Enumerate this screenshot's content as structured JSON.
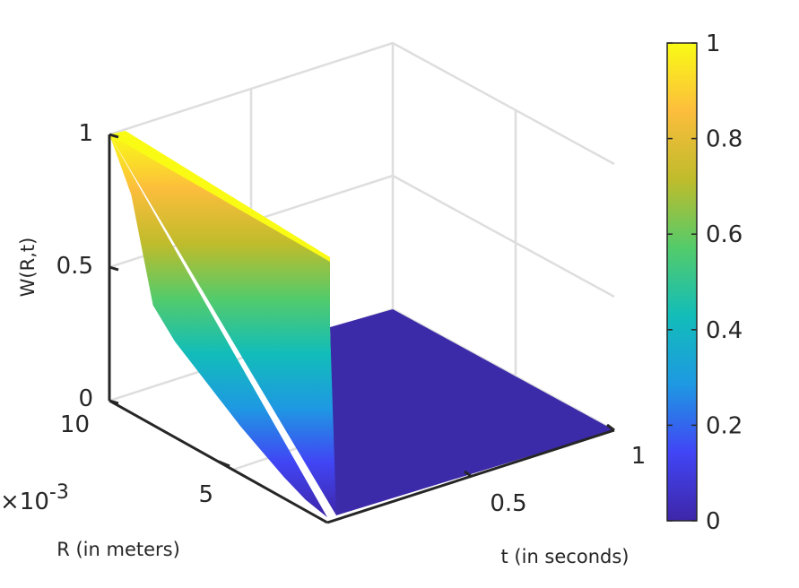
{
  "chart_data": {
    "type": "surface",
    "xlabel": "t (in seconds)",
    "ylabel": "R (in meters)",
    "zlabel": "W(R,t)",
    "t_ticks": [
      "0.5",
      "1"
    ],
    "r_ticks": [
      "5",
      "10"
    ],
    "r_exponent": "×10",
    "r_exponent_power": "-3",
    "z_ticks": [
      "0",
      "0.5",
      "1"
    ],
    "t_range": [
      0,
      1
    ],
    "r_range": [
      0,
      0.01
    ],
    "z_range": [
      0,
      1
    ],
    "grid": true,
    "colormap": "parula",
    "colorbar": {
      "ticks": [
        "0",
        "0.2",
        "0.4",
        "0.6",
        "0.8",
        "1"
      ],
      "range": [
        0,
        1
      ],
      "colors": [
        "#3e26a8",
        "#4145f5",
        "#1e99e2",
        "#12bdb9",
        "#53cb6b",
        "#bfbc2b",
        "#fcbd3c",
        "#f9fb15"
      ]
    },
    "surface": {
      "description_values": {
        "t_at_r_max": [
          0,
          0.0,
          0.0
        ],
        "W_at_t0_across_R": [
          [
            0.01,
            1.0
          ],
          [
            0.009,
            0.82
          ],
          [
            0.008,
            0.45
          ],
          [
            0.007,
            0.36
          ],
          [
            0.006,
            0.3
          ],
          [
            0.005,
            0.24
          ],
          [
            0.004,
            0.18
          ],
          [
            0.003,
            0.13
          ],
          [
            0.002,
            0.08
          ],
          [
            0.001,
            0.04
          ],
          [
            0.0,
            0.02
          ]
        ],
        "W_for_t_gt_0": 0
      }
    }
  }
}
